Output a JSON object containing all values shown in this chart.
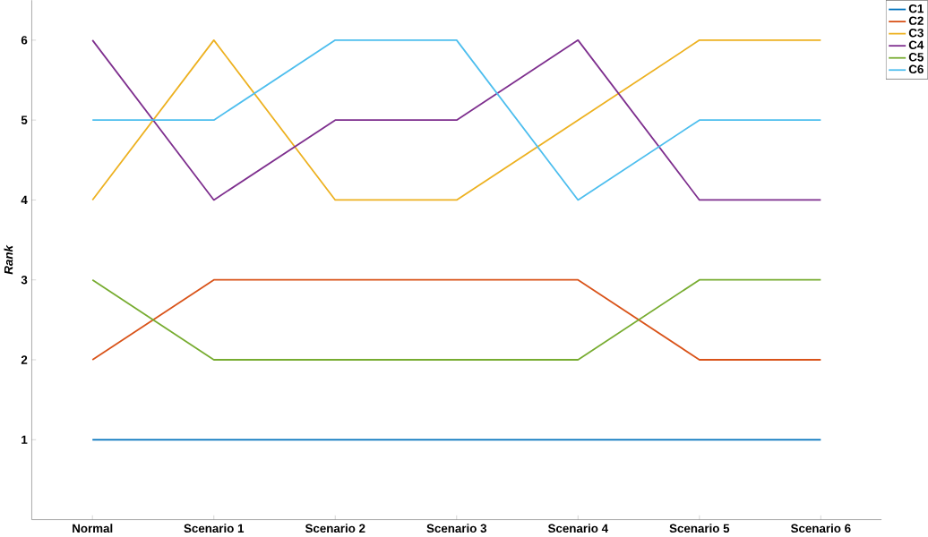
{
  "chart_data": {
    "type": "line",
    "ylabel": "Rank",
    "categories": [
      "Normal",
      "Scenario 1",
      "Scenario 2",
      "Scenario 3",
      "Scenario 4",
      "Scenario 5",
      "Scenario 6"
    ],
    "series": [
      {
        "name": "C1",
        "color": "#0072bd",
        "values": [
          1,
          1,
          1,
          1,
          1,
          1,
          1
        ]
      },
      {
        "name": "C2",
        "color": "#d95319",
        "values": [
          2,
          3,
          3,
          3,
          3,
          2,
          2
        ]
      },
      {
        "name": "C3",
        "color": "#edb120",
        "values": [
          4,
          6,
          4,
          4,
          5,
          6,
          6
        ]
      },
      {
        "name": "C4",
        "color": "#7e2f8e",
        "values": [
          6,
          4,
          5,
          5,
          6,
          4,
          4
        ]
      },
      {
        "name": "C5",
        "color": "#77ac30",
        "values": [
          3,
          2,
          2,
          2,
          2,
          3,
          3
        ]
      },
      {
        "name": "C6",
        "color": "#4dbeee",
        "values": [
          5,
          5,
          6,
          6,
          4,
          5,
          5
        ]
      }
    ],
    "ylim": [
      0,
      6.5
    ],
    "yticks": [
      1,
      2,
      3,
      4,
      5,
      6
    ],
    "grid": false,
    "legend": "top right",
    "marker": "none",
    "line_style": "solid"
  }
}
